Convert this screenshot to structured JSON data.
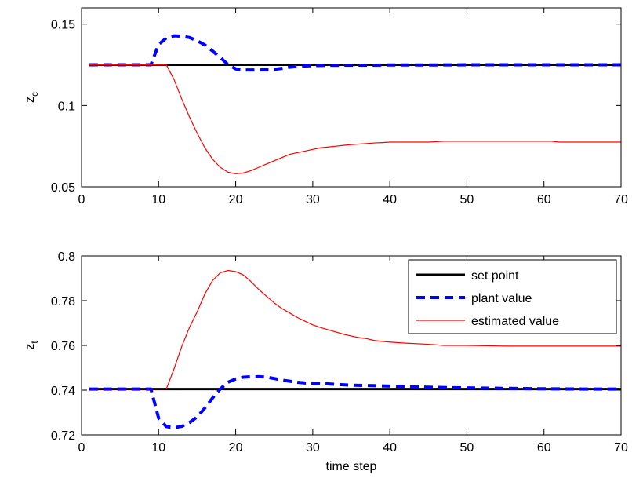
{
  "chart_data": [
    {
      "type": "line",
      "title": "",
      "xlabel": "",
      "ylabel": "z",
      "ylabel_subscript": "c",
      "xlim": [
        0,
        70
      ],
      "ylim": [
        0.05,
        0.16
      ],
      "xticks": [
        0,
        10,
        20,
        30,
        40,
        50,
        60,
        70
      ],
      "xtick_labels": [
        "0",
        "10",
        "20",
        "30",
        "40",
        "50",
        "60",
        "70"
      ],
      "yticks": [
        0.05,
        0.1,
        0.15
      ],
      "ytick_labels": [
        "0.05",
        "0.1",
        "0.15"
      ],
      "grid": false,
      "legend": null,
      "series": [
        {
          "name": "set point",
          "color": "#000000",
          "style": "solid",
          "x": [
            1,
            70
          ],
          "y": [
            0.125,
            0.125
          ]
        },
        {
          "name": "plant value",
          "color": "#0000ff",
          "style": "dashed",
          "x": [
            1,
            2,
            3,
            4,
            5,
            6,
            7,
            8,
            9,
            10,
            11,
            12,
            13,
            14,
            15,
            16,
            17,
            18,
            19,
            20,
            21,
            22,
            23,
            24,
            25,
            26,
            27,
            28,
            29,
            30,
            32,
            35,
            38,
            40,
            45,
            50,
            55,
            60,
            65,
            70
          ],
          "y": [
            0.125,
            0.125,
            0.125,
            0.125,
            0.125,
            0.125,
            0.125,
            0.125,
            0.125,
            0.1375,
            0.1415,
            0.1428,
            0.1426,
            0.1418,
            0.1398,
            0.1372,
            0.1335,
            0.1295,
            0.1252,
            0.1225,
            0.1218,
            0.1218,
            0.1218,
            0.122,
            0.1222,
            0.1228,
            0.1235,
            0.124,
            0.1243,
            0.1245,
            0.1247,
            0.1248,
            0.1248,
            0.1249,
            0.1249,
            0.125,
            0.125,
            0.125,
            0.125,
            0.125
          ]
        },
        {
          "name": "estimated value",
          "color": "#ff0000",
          "style": "solid",
          "x": [
            1,
            2,
            3,
            4,
            5,
            6,
            7,
            8,
            9,
            10,
            11,
            12,
            13,
            14,
            15,
            16,
            17,
            18,
            19,
            20,
            21,
            22,
            23,
            24,
            25,
            26,
            27,
            28,
            29,
            30,
            31,
            32,
            33,
            34,
            35,
            36,
            37,
            38,
            39,
            40,
            42,
            45,
            47,
            50,
            55,
            60,
            61,
            62,
            65,
            70
          ],
          "y": [
            0.125,
            0.125,
            0.125,
            0.125,
            0.125,
            0.125,
            0.125,
            0.125,
            0.125,
            0.125,
            0.125,
            0.116,
            0.104,
            0.093,
            0.083,
            0.074,
            0.067,
            0.062,
            0.059,
            0.058,
            0.0585,
            0.06,
            0.062,
            0.064,
            0.066,
            0.068,
            0.07,
            0.071,
            0.072,
            0.073,
            0.074,
            0.0745,
            0.075,
            0.0755,
            0.076,
            0.0763,
            0.0766,
            0.077,
            0.0772,
            0.0775,
            0.0775,
            0.0775,
            0.078,
            0.078,
            0.078,
            0.078,
            0.078,
            0.0775,
            0.0775,
            0.0775
          ]
        }
      ]
    },
    {
      "type": "line",
      "title": "",
      "xlabel": "time step",
      "ylabel": "z",
      "ylabel_subscript": "t",
      "xlim": [
        0,
        70
      ],
      "ylim": [
        0.72,
        0.8
      ],
      "xticks": [
        0,
        10,
        20,
        30,
        40,
        50,
        60,
        70
      ],
      "xtick_labels": [
        "0",
        "10",
        "20",
        "30",
        "40",
        "50",
        "60",
        "70"
      ],
      "yticks": [
        0.72,
        0.74,
        0.76,
        0.78,
        0.8
      ],
      "ytick_labels": [
        "0.72",
        "0.74",
        "0.76",
        "0.78",
        "0.8"
      ],
      "grid": false,
      "legend": "top-right",
      "series": [
        {
          "name": "set point",
          "color": "#000000",
          "style": "solid",
          "x": [
            1,
            70
          ],
          "y": [
            0.7405,
            0.7405
          ]
        },
        {
          "name": "plant value",
          "color": "#0000ff",
          "style": "dashed",
          "x": [
            1,
            2,
            3,
            4,
            5,
            6,
            7,
            8,
            9,
            10,
            11,
            12,
            13,
            14,
            15,
            16,
            17,
            18,
            19,
            20,
            21,
            22,
            23,
            24,
            25,
            26,
            27,
            28,
            29,
            30,
            32,
            35,
            38,
            40,
            45,
            50,
            55,
            60,
            65,
            70
          ],
          "y": [
            0.7405,
            0.7405,
            0.7405,
            0.7405,
            0.7405,
            0.7405,
            0.7405,
            0.7405,
            0.7405,
            0.7275,
            0.7237,
            0.7232,
            0.7238,
            0.7255,
            0.728,
            0.732,
            0.7365,
            0.7405,
            0.7435,
            0.745,
            0.7458,
            0.746,
            0.746,
            0.7458,
            0.7452,
            0.7445,
            0.744,
            0.7435,
            0.7432,
            0.743,
            0.7428,
            0.7422,
            0.742,
            0.7418,
            0.7413,
            0.741,
            0.7408,
            0.7406,
            0.7405,
            0.7405
          ]
        },
        {
          "name": "estimated value",
          "color": "#ff0000",
          "style": "solid",
          "x": [
            1,
            2,
            3,
            4,
            5,
            6,
            7,
            8,
            9,
            10,
            11,
            12,
            13,
            14,
            15,
            16,
            17,
            18,
            19,
            20,
            21,
            22,
            23,
            24,
            25,
            26,
            27,
            28,
            29,
            30,
            31,
            32,
            33,
            34,
            35,
            36,
            37,
            38,
            39,
            40,
            42,
            45,
            47,
            50,
            55,
            60,
            65,
            70
          ],
          "y": [
            0.7405,
            0.7405,
            0.7405,
            0.7405,
            0.7405,
            0.7405,
            0.7405,
            0.7405,
            0.7405,
            0.7405,
            0.7405,
            0.7495,
            0.7595,
            0.768,
            0.775,
            0.783,
            0.789,
            0.7925,
            0.7935,
            0.793,
            0.7915,
            0.7885,
            0.785,
            0.782,
            0.779,
            0.7765,
            0.7745,
            0.7725,
            0.7708,
            0.7692,
            0.768,
            0.767,
            0.766,
            0.765,
            0.7642,
            0.7635,
            0.763,
            0.7622,
            0.7618,
            0.7615,
            0.761,
            0.7605,
            0.76,
            0.76,
            0.7597,
            0.7597,
            0.7597,
            0.7597
          ]
        }
      ]
    }
  ]
}
